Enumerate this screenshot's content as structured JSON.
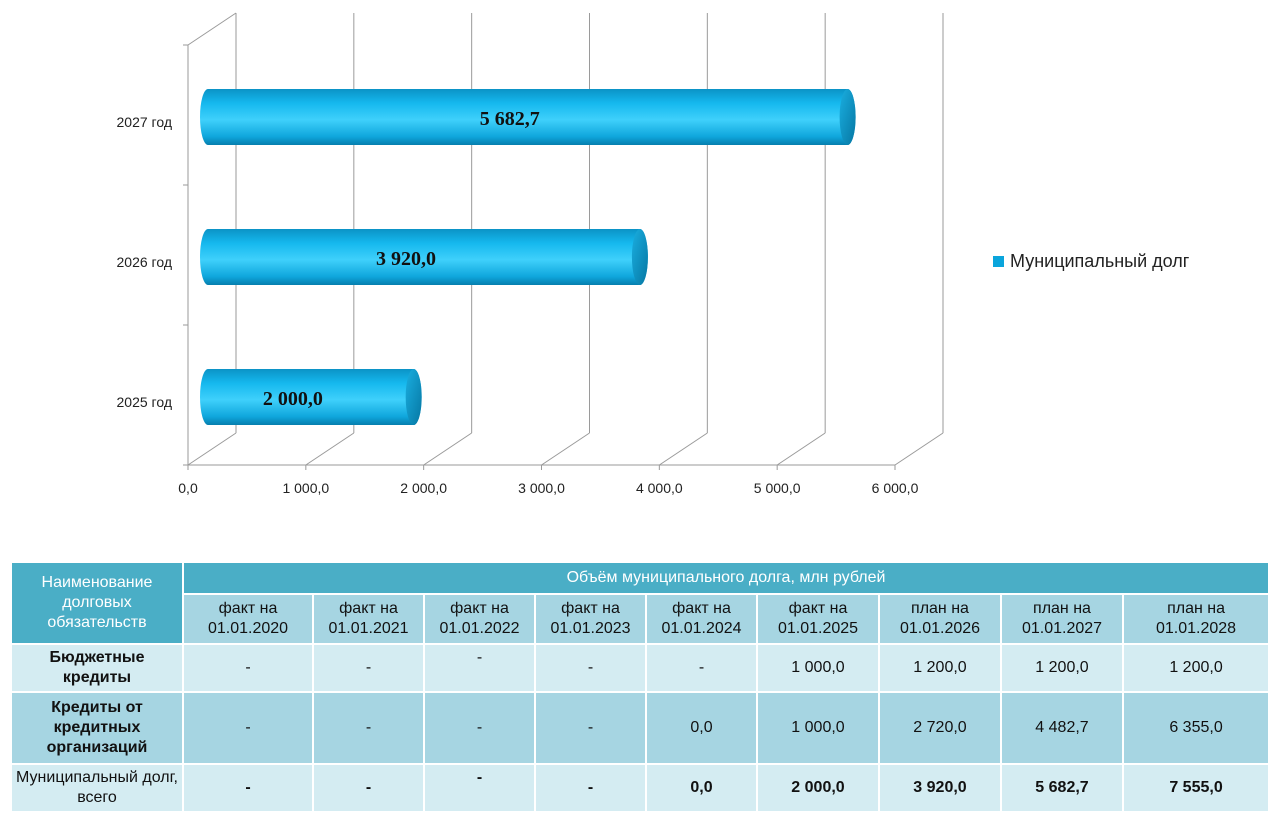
{
  "chart_data": {
    "type": "bar",
    "orientation": "horizontal",
    "categories": [
      "2025 год",
      "2026 год",
      "2027 год"
    ],
    "series": [
      {
        "name": "Муниципальный долг",
        "values": [
          2000.0,
          3920.0,
          5682.7
        ],
        "labels": [
          "2 000,0",
          "3 920,0",
          "5 682,7"
        ],
        "color": "#0aa5dc"
      }
    ],
    "xlim": [
      0,
      6000
    ],
    "xticks": [
      0,
      1000,
      2000,
      3000,
      4000,
      5000,
      6000
    ],
    "xtick_labels": [
      "0,0",
      "1 000,0",
      "2 000,0",
      "3 000,0",
      "4 000,0",
      "5 000,0",
      "6 000,0"
    ],
    "grid": true,
    "legend_position": "right",
    "legend_label": "Муниципальный долг"
  },
  "table": {
    "name_header": "Наименование долговых обязательств",
    "group_header": "Объём муниципального долга, млн рублей",
    "columns": [
      "факт на 01.01.2020",
      "факт на 01.01.2021",
      "факт на 01.01.2022",
      "факт на 01.01.2023",
      "факт на 01.01.2024",
      "факт на 01.01.2025",
      "план на 01.01.2026",
      "план на 01.01.2027",
      "план на 01.01.2028"
    ],
    "rows": [
      {
        "name": "Бюджетные кредиты",
        "values": [
          "-",
          "-",
          "-",
          "-",
          "-",
          "1 000,0",
          "1 200,0",
          "1 200,0",
          "1 200,0"
        ]
      },
      {
        "name": "Кредиты от кредитных организаций",
        "values": [
          "-",
          "-",
          "-",
          "-",
          "0,0",
          "1 000,0",
          "2 720,0",
          "4 482,7",
          "6 355,0"
        ]
      },
      {
        "name": "Муниципальный долг, всего",
        "values": [
          "-",
          "-",
          "-",
          "-",
          "0,0",
          "2 000,0",
          "3 920,0",
          "5 682,7",
          "7 555,0"
        ]
      }
    ]
  }
}
